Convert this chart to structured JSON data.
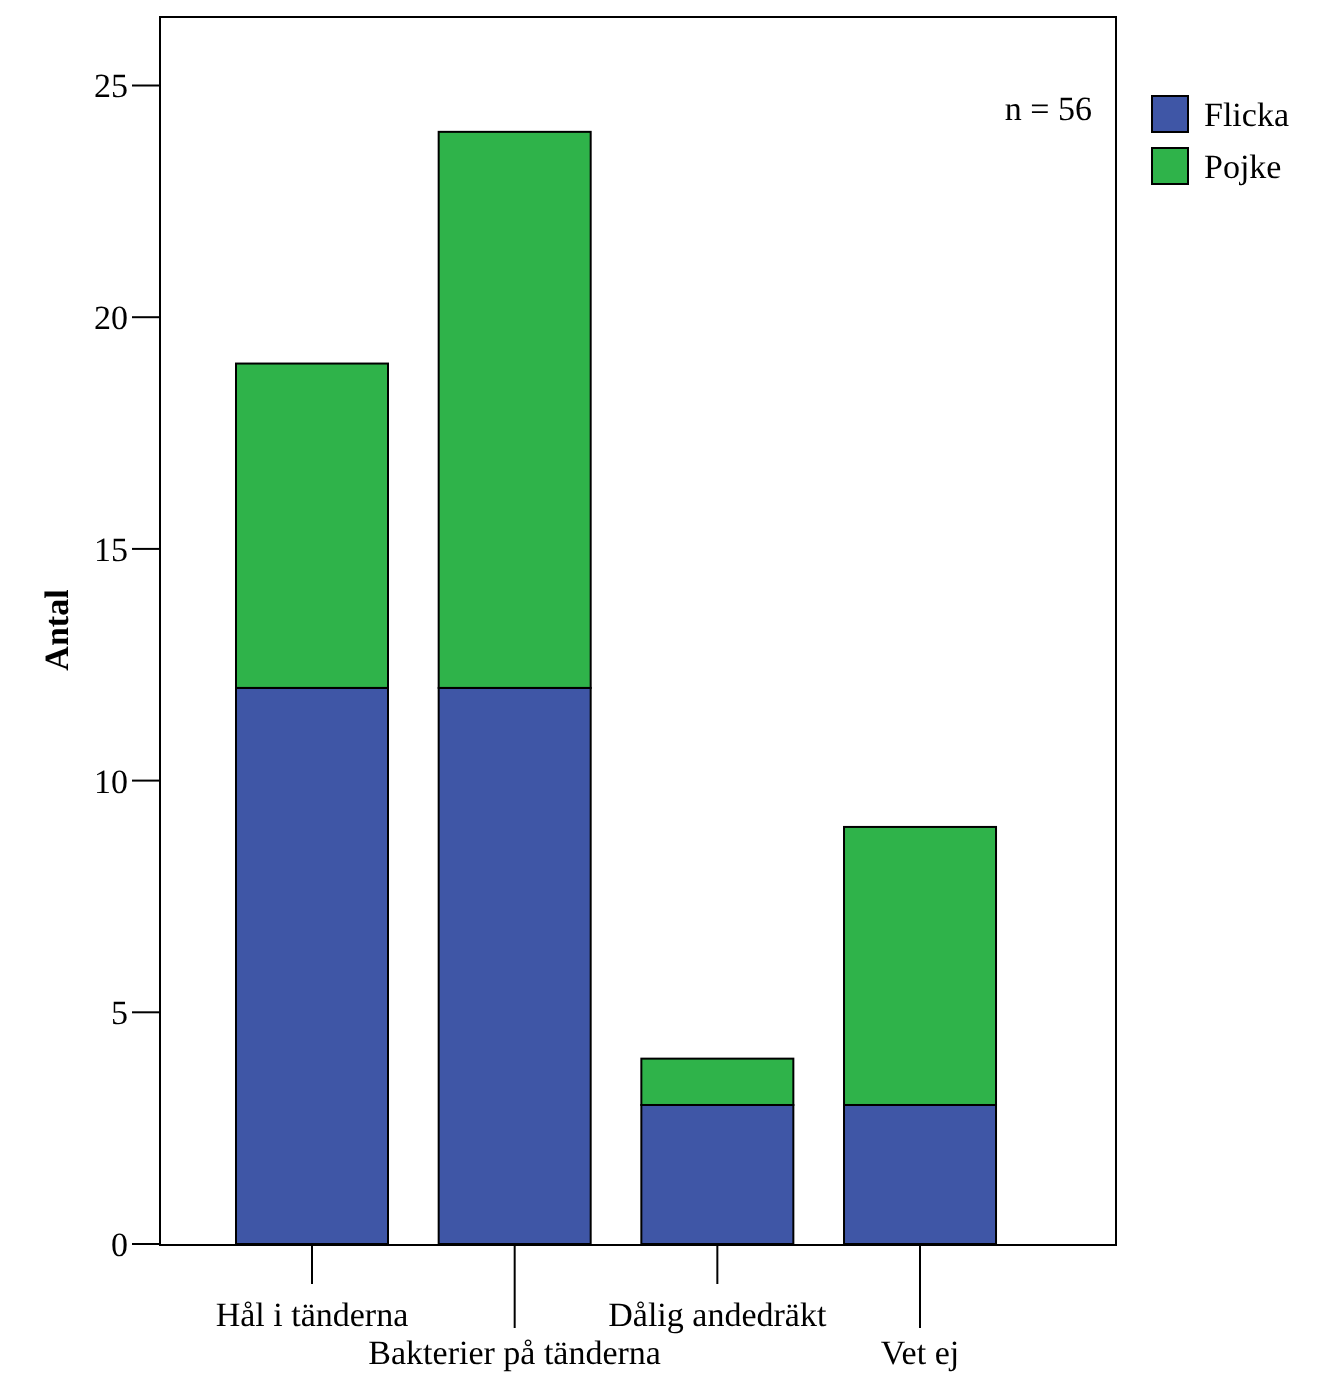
{
  "chart_data": {
    "type": "bar",
    "ylabel": "Antal",
    "categories": [
      "Hål i tänderna",
      "Bakterier på tänderna",
      "Dålig andedräkt",
      "Vet ej"
    ],
    "series": [
      {
        "name": "Flicka",
        "color": "#3f56a6",
        "values": [
          12,
          12,
          3,
          3
        ]
      },
      {
        "name": "Pojke",
        "color": "#2fb34a",
        "values": [
          7,
          12,
          1,
          6
        ]
      }
    ],
    "stacked": true,
    "ylim": [
      0,
      26.5
    ],
    "yticks": [
      0,
      5,
      10,
      15,
      20,
      25
    ],
    "grid": false,
    "legend": "top right",
    "annotations": [
      "n = 56"
    ]
  }
}
